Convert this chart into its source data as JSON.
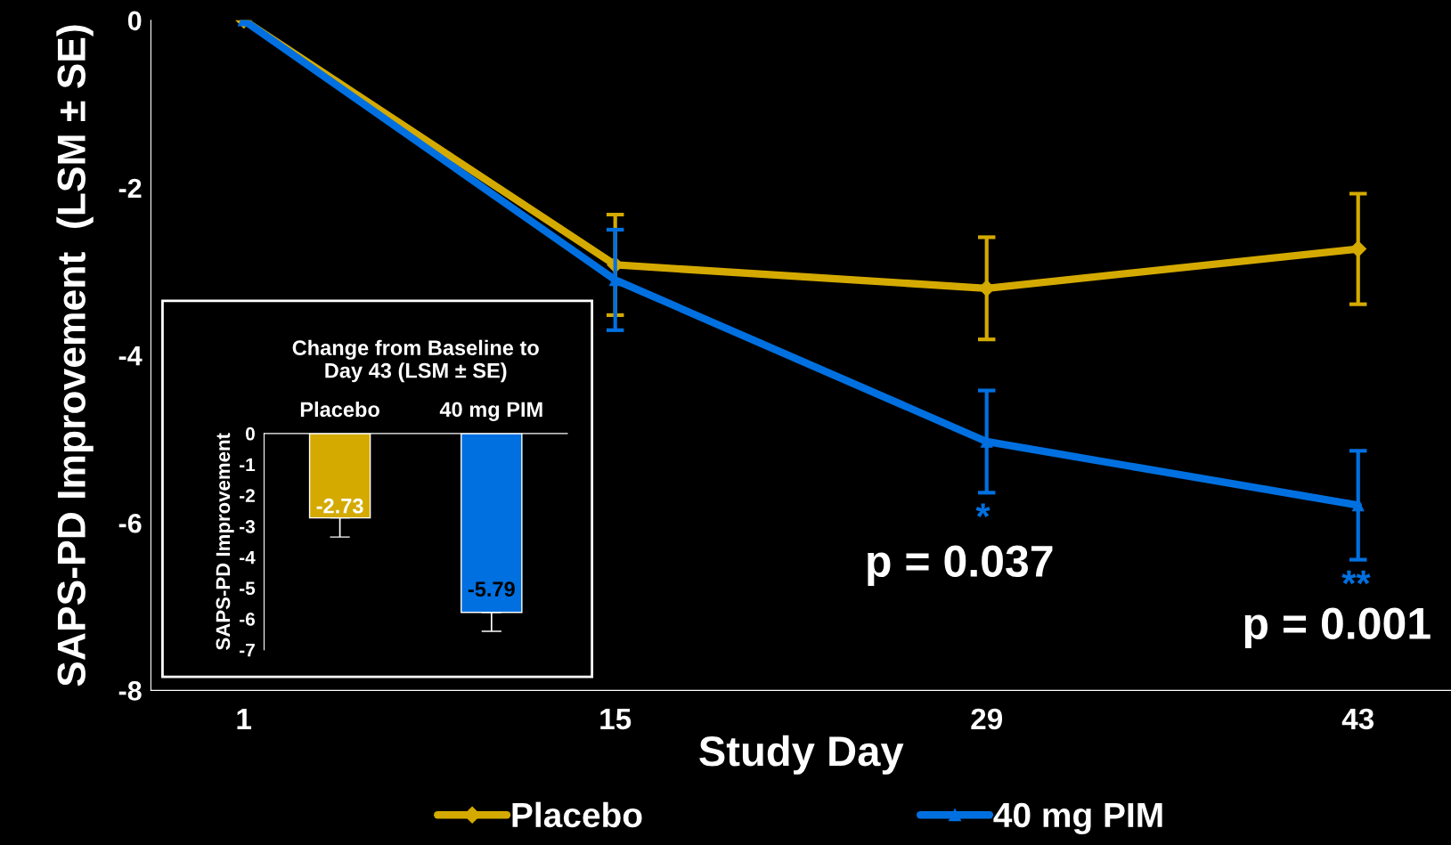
{
  "chart_data": [
    {
      "type": "line",
      "xlabel": "Study Day",
      "ylabel": "SAPS-PD Improvement  (LSM ± SE)",
      "categories": [
        "1",
        "15",
        "29",
        "43"
      ],
      "series": [
        {
          "name": "Placebo",
          "color": "#d4aa00",
          "marker": "diamond",
          "values": [
            0,
            -2.92,
            -3.2,
            -2.73
          ],
          "errors": [
            null,
            0.6,
            0.61,
            0.66
          ]
        },
        {
          "name": "40 mg PIM",
          "color": "#0070e0",
          "marker": "triangle",
          "values": [
            0,
            -3.1,
            -5.03,
            -5.79
          ],
          "errors": [
            null,
            0.6,
            0.61,
            0.65
          ]
        }
      ],
      "ylim": [
        -8,
        0
      ],
      "yticks": [
        0,
        -2,
        -4,
        -6,
        -8
      ],
      "grid": false,
      "legend": "bottom",
      "line_style": "solid",
      "annotations": [
        "*",
        "p = 0.037",
        "**",
        "p = 0.001"
      ]
    },
    {
      "type": "bar",
      "title": "Change from Baseline to\nDay 43 (LSM ± SE)",
      "ylabel": "SAPS-PD Improvement",
      "categories": [
        "Placebo",
        "40 mg PIM"
      ],
      "values": [
        -2.73,
        -5.79
      ],
      "colors": [
        "#d4aa00",
        "#0070e0"
      ],
      "errors": [
        [
          -3.35,
          -2.73
        ],
        [
          -6.4,
          -5.79
        ]
      ],
      "ylim": [
        -7,
        0
      ],
      "yticks": [
        0,
        -1,
        -2,
        -3,
        -4,
        -5,
        -6,
        -7
      ],
      "data_labels": true,
      "grid": false
    }
  ]
}
